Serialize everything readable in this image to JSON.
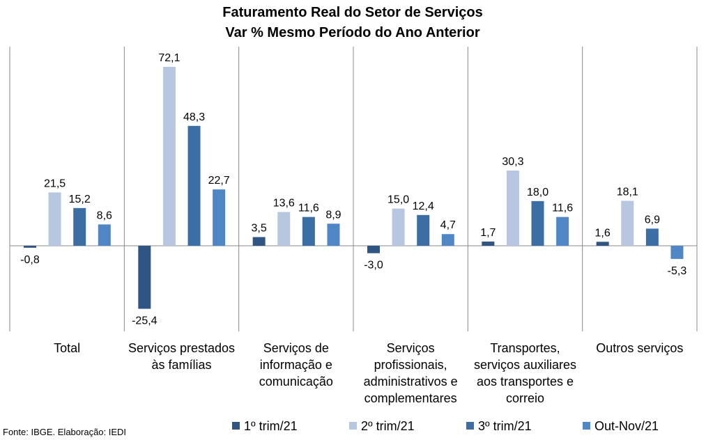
{
  "chart_data": {
    "type": "bar",
    "title": "Faturamento Real do Setor de Serviços",
    "subtitle": "Var % Mesmo Período do Ano Anterior",
    "categories": [
      [
        "Total"
      ],
      [
        "Serviços prestados",
        "às famílias"
      ],
      [
        "Serviços de",
        "informação e",
        "comunicação"
      ],
      [
        "Serviços",
        "profissionais,",
        "administrativos e",
        "complementares"
      ],
      [
        "Transportes,",
        "serviços auxiliares",
        "aos transportes e",
        "correio"
      ],
      [
        "Outros serviços"
      ]
    ],
    "series": [
      {
        "name": "1º trim/21",
        "color": "#2e5584",
        "values": [
          -0.8,
          -25.4,
          3.5,
          -3.0,
          1.7,
          1.6
        ],
        "labels": [
          "-0,8",
          "-25,4",
          "3,5",
          "-3,0",
          "1,7",
          "1,6"
        ]
      },
      {
        "name": "2º trim/21",
        "color": "#b8c7e0",
        "values": [
          21.5,
          72.1,
          13.6,
          15.0,
          30.3,
          18.1
        ],
        "labels": [
          "21,5",
          "72,1",
          "13,6",
          "15,0",
          "30,3",
          "18,1"
        ]
      },
      {
        "name": "3º trim/21",
        "color": "#3a6ea5",
        "values": [
          15.2,
          48.3,
          11.6,
          12.4,
          18.0,
          6.9
        ],
        "labels": [
          "15,2",
          "48,3",
          "11,6",
          "12,4",
          "18,0",
          "6,9"
        ]
      },
      {
        "name": "Out-Nov/21",
        "color": "#4f86c6",
        "values": [
          8.6,
          22.7,
          8.9,
          4.7,
          11.6,
          -5.3
        ],
        "labels": [
          "8,6",
          "22,7",
          "8,9",
          "4,7",
          "11,6",
          "-5,3"
        ]
      }
    ],
    "ylim": [
      -32,
      80
    ],
    "grid": false,
    "legend": "bottom"
  },
  "source": "Fonte: IBGE. Elaboração: IEDI"
}
